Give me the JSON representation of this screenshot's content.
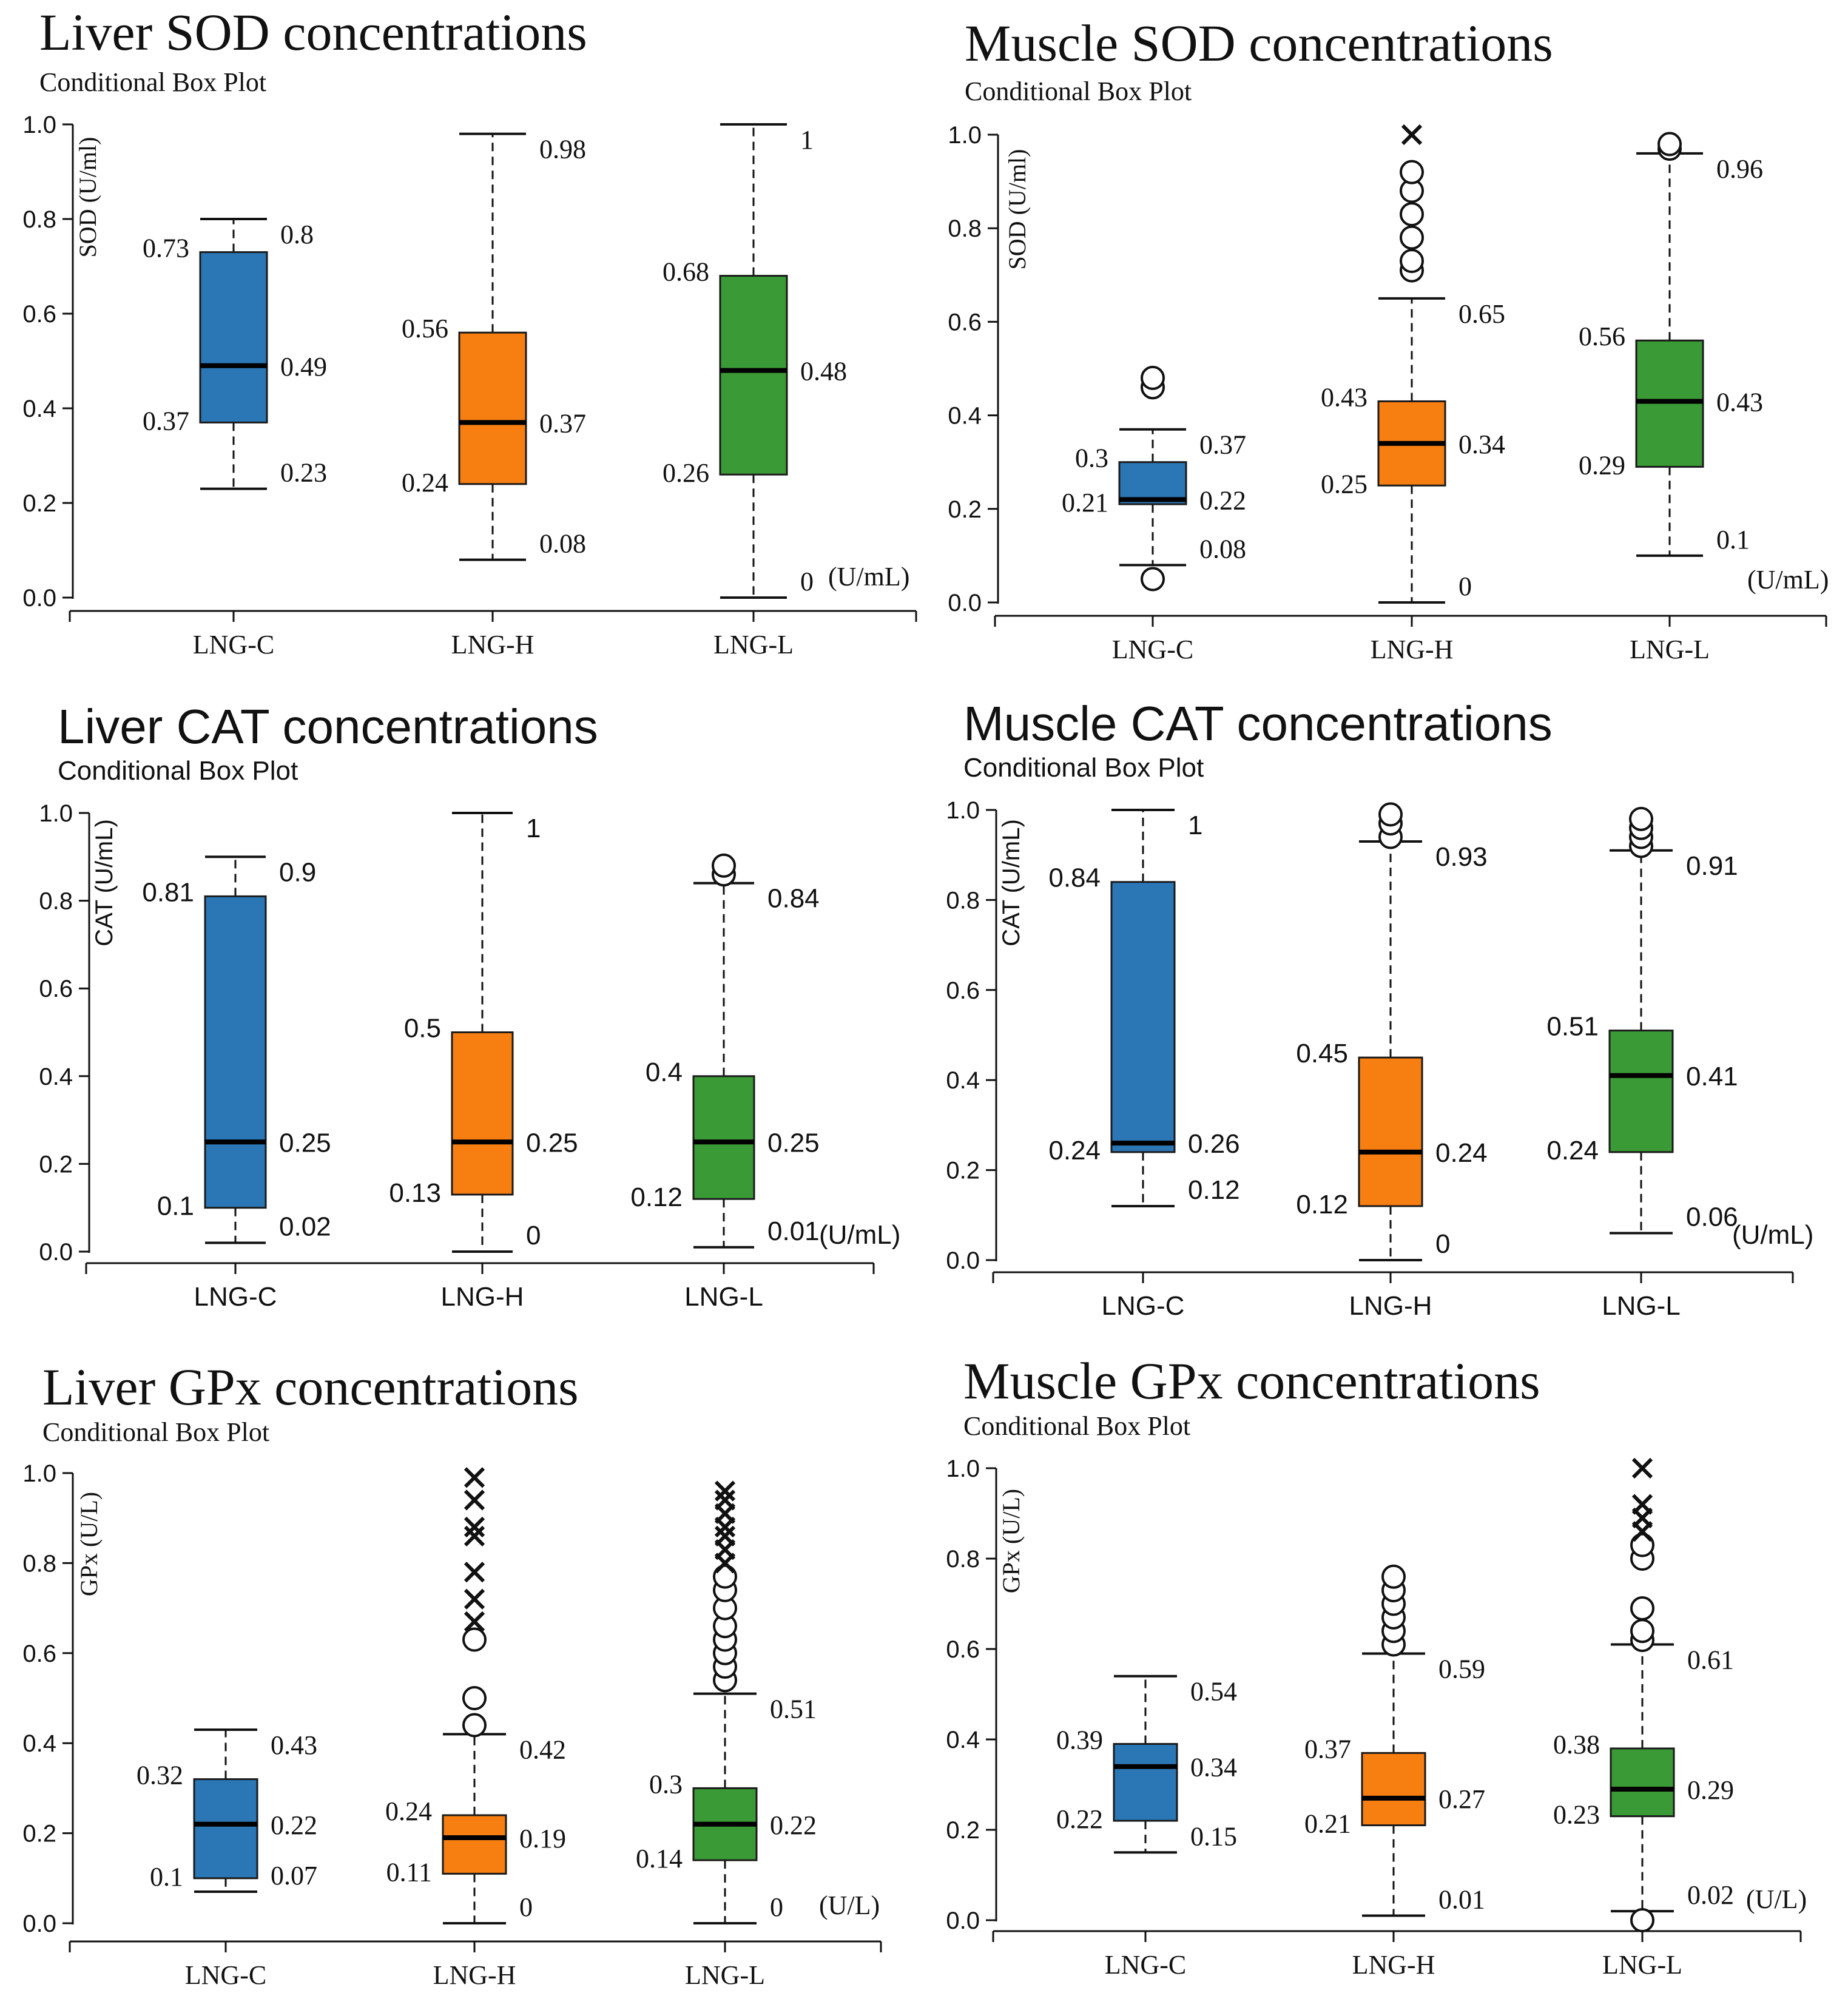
{
  "chart_data": [
    {
      "type": "boxplot",
      "title": "Liver SOD concentrations",
      "subtitle": "Conditional Box Plot",
      "ylabel": "SOD (U/ml)",
      "unit_label": "(U/mL)",
      "ylim": [
        0,
        1
      ],
      "yticks": [
        "0.0",
        "0.2",
        "0.4",
        "0.6",
        "0.8",
        "1.0"
      ],
      "categories": [
        "LNG-C",
        "LNG-H",
        "LNG-L"
      ],
      "boxes": [
        {
          "name": "LNG-C",
          "min": 0.23,
          "q1": 0.37,
          "median": 0.49,
          "q3": 0.73,
          "max": 0.8,
          "labels": {
            "min": "0.23",
            "q1": "0.37",
            "median": "0.49",
            "q3": "0.73",
            "max": "0.8"
          },
          "circles": [],
          "crosses": []
        },
        {
          "name": "LNG-H",
          "min": 0.08,
          "q1": 0.24,
          "median": 0.37,
          "q3": 0.56,
          "max": 0.98,
          "labels": {
            "min": "0.08",
            "q1": "0.24",
            "median": "0.37",
            "q3": "0.56",
            "max": "0.98"
          },
          "circles": [],
          "crosses": []
        },
        {
          "name": "LNG-L",
          "min": 0,
          "q1": 0.26,
          "median": 0.48,
          "q3": 0.68,
          "max": 1,
          "labels": {
            "min": "0",
            "q1": "0.26",
            "median": "0.48",
            "q3": "0.68",
            "max": "1"
          },
          "circles": [],
          "crosses": []
        }
      ]
    },
    {
      "type": "boxplot",
      "title": "Muscle SOD concentrations",
      "subtitle": "Conditional Box Plot",
      "ylabel": "SOD (U/ml)",
      "unit_label": "(U/mL)",
      "ylim": [
        0,
        1
      ],
      "yticks": [
        "0.0",
        "0.2",
        "0.4",
        "0.6",
        "0.8",
        "1.0"
      ],
      "categories": [
        "LNG-C",
        "LNG-H",
        "LNG-L"
      ],
      "boxes": [
        {
          "name": "LNG-C",
          "min": 0.08,
          "q1": 0.21,
          "median": 0.22,
          "q3": 0.3,
          "max": 0.37,
          "labels": {
            "min": "0.08",
            "q1": "0.21",
            "median": "0.22",
            "q3": "0.3",
            "max": "0.37"
          },
          "circles": [
            0.05,
            0.46,
            0.48
          ],
          "crosses": []
        },
        {
          "name": "LNG-H",
          "min": 0,
          "q1": 0.25,
          "median": 0.34,
          "q3": 0.43,
          "max": 0.65,
          "labels": {
            "min": "0",
            "q1": "0.25",
            "median": "0.34",
            "q3": "0.43",
            "max": "0.65"
          },
          "circles": [
            0.71,
            0.73,
            0.78,
            0.83,
            0.88,
            0.92
          ],
          "crosses": [
            1.0
          ]
        },
        {
          "name": "LNG-L",
          "min": 0.1,
          "q1": 0.29,
          "median": 0.43,
          "q3": 0.56,
          "max": 0.96,
          "labels": {
            "min": "0.1",
            "q1": "0.29",
            "median": "0.43",
            "q3": "0.56",
            "max": "0.96"
          },
          "circles": [
            0.97,
            0.98
          ],
          "crosses": []
        }
      ]
    },
    {
      "type": "boxplot",
      "title": "Liver CAT concentrations",
      "subtitle": "Conditional Box Plot",
      "ylabel": "CAT (U/mL)",
      "unit_label": "(U/mL)",
      "ylim": [
        0,
        1
      ],
      "yticks": [
        "0.0",
        "0.2",
        "0.4",
        "0.6",
        "0.8",
        "1.0"
      ],
      "categories": [
        "LNG-C",
        "LNG-H",
        "LNG-L"
      ],
      "boxes": [
        {
          "name": "LNG-C",
          "min": 0.02,
          "q1": 0.1,
          "median": 0.25,
          "q3": 0.81,
          "max": 0.9,
          "labels": {
            "min": "0.02",
            "q1": "0.1",
            "median": "0.25",
            "q3": "0.81",
            "max": "0.9"
          },
          "circles": [],
          "crosses": []
        },
        {
          "name": "LNG-H",
          "min": 0,
          "q1": 0.13,
          "median": 0.25,
          "q3": 0.5,
          "max": 1,
          "labels": {
            "min": "0",
            "q1": "0.13",
            "median": "0.25",
            "q3": "0.5",
            "max": "1"
          },
          "circles": [],
          "crosses": []
        },
        {
          "name": "LNG-L",
          "min": 0.01,
          "q1": 0.12,
          "median": 0.25,
          "q3": 0.4,
          "max": 0.84,
          "labels": {
            "min": "0.01",
            "q1": "0.12",
            "median": "0.25",
            "q3": "0.4",
            "max": "0.84"
          },
          "circles": [
            0.86,
            0.88
          ],
          "crosses": []
        }
      ]
    },
    {
      "type": "boxplot",
      "title": "Muscle CAT concentrations",
      "subtitle": "Conditional Box Plot",
      "ylabel": "CAT (U/mL)",
      "unit_label": "(U/mL)",
      "ylim": [
        0,
        1
      ],
      "yticks": [
        "0.0",
        "0.2",
        "0.4",
        "0.6",
        "0.8",
        "1.0"
      ],
      "categories": [
        "LNG-C",
        "LNG-H",
        "LNG-L"
      ],
      "boxes": [
        {
          "name": "LNG-C",
          "min": 0.12,
          "q1": 0.24,
          "median": 0.26,
          "q3": 0.84,
          "max": 1,
          "labels": {
            "min": "0.12",
            "q1": "0.24",
            "median": "0.26",
            "q3": "0.84",
            "max": "1"
          },
          "circles": [],
          "crosses": []
        },
        {
          "name": "LNG-H",
          "min": 0,
          "q1": 0.12,
          "median": 0.24,
          "q3": 0.45,
          "max": 0.93,
          "labels": {
            "min": "0",
            "q1": "0.12",
            "median": "0.24",
            "q3": "0.45",
            "max": "0.93"
          },
          "circles": [
            0.94,
            0.97,
            0.99
          ],
          "crosses": []
        },
        {
          "name": "LNG-L",
          "min": 0.06,
          "q1": 0.24,
          "median": 0.41,
          "q3": 0.51,
          "max": 0.91,
          "labels": {
            "min": "0.06",
            "q1": "0.24",
            "median": "0.41",
            "q3": "0.51",
            "max": "0.91"
          },
          "circles": [
            0.92,
            0.94,
            0.96,
            0.98
          ],
          "crosses": []
        }
      ]
    },
    {
      "type": "boxplot",
      "title": "Liver GPx concentrations",
      "subtitle": "Conditional Box Plot",
      "ylabel": "GPx (U/L)",
      "unit_label": "(U/L)",
      "ylim": [
        0,
        1
      ],
      "yticks": [
        "0.0",
        "0.2",
        "0.4",
        "0.6",
        "0.8",
        "1.0"
      ],
      "categories": [
        "LNG-C",
        "LNG-H",
        "LNG-L"
      ],
      "boxes": [
        {
          "name": "LNG-C",
          "min": 0.07,
          "q1": 0.1,
          "median": 0.22,
          "q3": 0.32,
          "max": 0.43,
          "labels": {
            "min": "0.07",
            "q1": "0.1",
            "median": "0.22",
            "q3": "0.32",
            "max": "0.43"
          },
          "circles": [],
          "crosses": []
        },
        {
          "name": "LNG-H",
          "min": 0,
          "q1": 0.11,
          "median": 0.19,
          "q3": 0.24,
          "max": 0.42,
          "labels": {
            "min": "0",
            "q1": "0.11",
            "median": "0.19",
            "q3": "0.24",
            "max": "0.42"
          },
          "circles": [
            0.44,
            0.5,
            0.63
          ],
          "crosses": [
            0.67,
            0.72,
            0.78,
            0.86,
            0.88,
            0.94,
            0.99
          ]
        },
        {
          "name": "LNG-L",
          "min": 0,
          "q1": 0.14,
          "median": 0.22,
          "q3": 0.3,
          "max": 0.51,
          "labels": {
            "min": "0",
            "q1": "0.14",
            "median": "0.22",
            "q3": "0.3",
            "max": "0.51"
          },
          "circles": [
            0.54,
            0.57,
            0.6,
            0.63,
            0.66,
            0.7,
            0.74,
            0.77
          ],
          "crosses": [
            0.8,
            0.83,
            0.86,
            0.88,
            0.91,
            0.94,
            0.96
          ]
        }
      ]
    },
    {
      "type": "boxplot",
      "title": "Muscle GPx concentrations",
      "subtitle": "Conditional Box Plot",
      "ylabel": "GPx (U/L)",
      "unit_label": "(U/L)",
      "ylim": [
        0,
        1
      ],
      "yticks": [
        "0.0",
        "0.2",
        "0.4",
        "0.6",
        "0.8",
        "1.0"
      ],
      "categories": [
        "LNG-C",
        "LNG-H",
        "LNG-L"
      ],
      "boxes": [
        {
          "name": "LNG-C",
          "min": 0.15,
          "q1": 0.22,
          "median": 0.34,
          "q3": 0.39,
          "max": 0.54,
          "labels": {
            "min": "0.15",
            "q1": "0.22",
            "median": "0.34",
            "q3": "0.39",
            "max": "0.54"
          },
          "circles": [],
          "crosses": []
        },
        {
          "name": "LNG-H",
          "min": 0.01,
          "q1": 0.21,
          "median": 0.27,
          "q3": 0.37,
          "max": 0.59,
          "labels": {
            "min": "0.01",
            "q1": "0.21",
            "median": "0.27",
            "q3": "0.37",
            "max": "0.59"
          },
          "circles": [
            0.61,
            0.64,
            0.67,
            0.7,
            0.73,
            0.76
          ],
          "crosses": []
        },
        {
          "name": "LNG-L",
          "min": 0.02,
          "q1": 0.23,
          "median": 0.29,
          "q3": 0.38,
          "max": 0.61,
          "labels": {
            "min": "0.02",
            "q1": "0.23",
            "median": "0.29",
            "q3": "0.38",
            "max": "0.61"
          },
          "circles": [
            0.0,
            0.62,
            0.64,
            0.69,
            0.8,
            0.83
          ],
          "crosses": [
            0.86,
            0.89,
            0.92,
            1.0
          ]
        }
      ]
    }
  ],
  "colors": {
    "LNG-C": "#2b77b6",
    "LNG-H": "#f77f12",
    "LNG-L": "#3a9a35"
  }
}
